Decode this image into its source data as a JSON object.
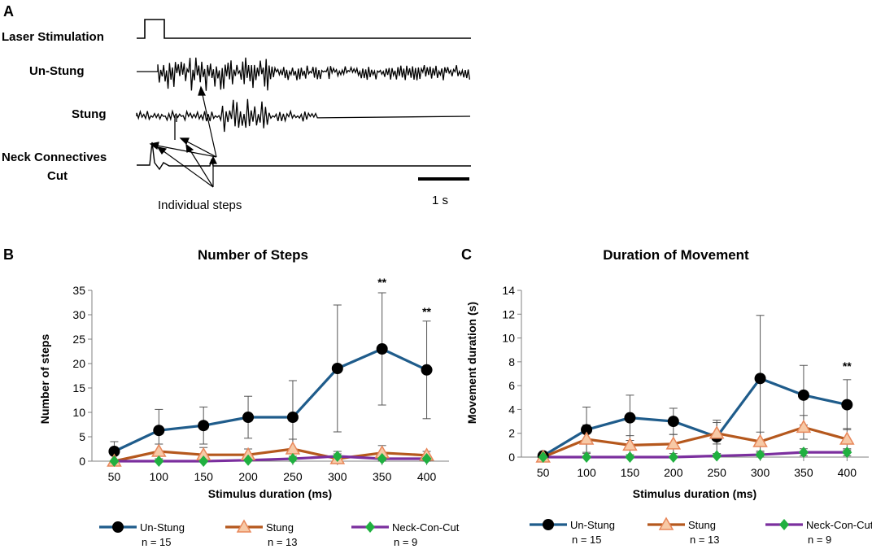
{
  "panel_a": {
    "letter": "A",
    "labels": {
      "laser": "Laser Stimulation",
      "unstung": "Un-Stung",
      "stung": "Stung",
      "neck_line1": "Neck Connectives",
      "neck_line2": "Cut"
    },
    "annotation": "Individual steps",
    "scale_bar_label": "1 s"
  },
  "chart_data": [
    {
      "id": "B",
      "type": "line",
      "letter": "B",
      "title": "Number of Steps",
      "xlabel": "Stimulus duration (ms)",
      "ylabel": "Number of steps",
      "categories": [
        "50",
        "100",
        "150",
        "200",
        "250",
        "300",
        "350",
        "400"
      ],
      "ylim": [
        0,
        35
      ],
      "yticks": [
        0,
        5,
        10,
        15,
        20,
        25,
        30,
        35
      ],
      "series": [
        {
          "name": "Un-Stung",
          "n": "n = 15",
          "color": "#1f5c8b",
          "marker": "circle",
          "values": [
            2,
            6.3,
            7.3,
            9,
            9,
            19,
            23,
            18.7
          ],
          "error": [
            2,
            4.3,
            3.8,
            4.3,
            7.5,
            13,
            11.5,
            10
          ]
        },
        {
          "name": "Stung",
          "n": "n = 13",
          "color": "#b5581d",
          "marker": "triangle",
          "values": [
            0,
            2,
            1.3,
            1.3,
            2.5,
            0.5,
            1.7,
            1.2
          ],
          "error": [
            0,
            1.5,
            1.5,
            1.2,
            2,
            1,
            1.5,
            0.8
          ]
        },
        {
          "name": "Neck-Con-Cut",
          "n": "n = 9",
          "color": "#7b2f9e",
          "marker": "diamond",
          "values": [
            0,
            0,
            0,
            0.2,
            0.5,
            1,
            0.5,
            0.5
          ],
          "error": [
            0,
            0,
            0,
            0.3,
            0.5,
            1,
            0.5,
            0.5
          ]
        }
      ],
      "significance": [
        {
          "category": "350",
          "y": 35.8,
          "text": "**"
        },
        {
          "category": "400",
          "y": 29.8,
          "text": "**"
        }
      ]
    },
    {
      "id": "C",
      "type": "line",
      "letter": "C",
      "title": "Duration of Movement",
      "xlabel": "Stimulus duration (ms)",
      "ylabel": "Movement duration (s)",
      "categories": [
        "50",
        "100",
        "150",
        "200",
        "250",
        "300",
        "350",
        "400"
      ],
      "ylim": [
        0,
        14
      ],
      "yticks": [
        0,
        2,
        4,
        6,
        8,
        10,
        12,
        14
      ],
      "series": [
        {
          "name": "Un-Stung",
          "n": "n = 15",
          "color": "#1f5c8b",
          "marker": "circle",
          "values": [
            0.1,
            2.3,
            3.3,
            3,
            1.7,
            6.6,
            5.2,
            4.4
          ],
          "error": [
            0.2,
            1.9,
            1.9,
            1.1,
            1.4,
            5.3,
            2.5,
            2.1
          ]
        },
        {
          "name": "Stung",
          "n": "n = 13",
          "color": "#b5581d",
          "marker": "triangle",
          "values": [
            0,
            1.5,
            1,
            1.1,
            2,
            1.3,
            2.5,
            1.5
          ],
          "error": [
            0,
            1.2,
            0.8,
            0.8,
            0.9,
            0.8,
            1,
            0.9
          ]
        },
        {
          "name": "Neck-Con-Cut",
          "n": "n = 9",
          "color": "#7b2f9e",
          "marker": "diamond",
          "values": [
            0,
            0,
            0,
            0,
            0.1,
            0.2,
            0.4,
            0.4
          ],
          "error": [
            0,
            0,
            0,
            0,
            0.1,
            0.2,
            0.3,
            0.3
          ]
        }
      ],
      "significance": [
        {
          "category": "400",
          "y": 7.3,
          "text": "**"
        }
      ]
    }
  ]
}
